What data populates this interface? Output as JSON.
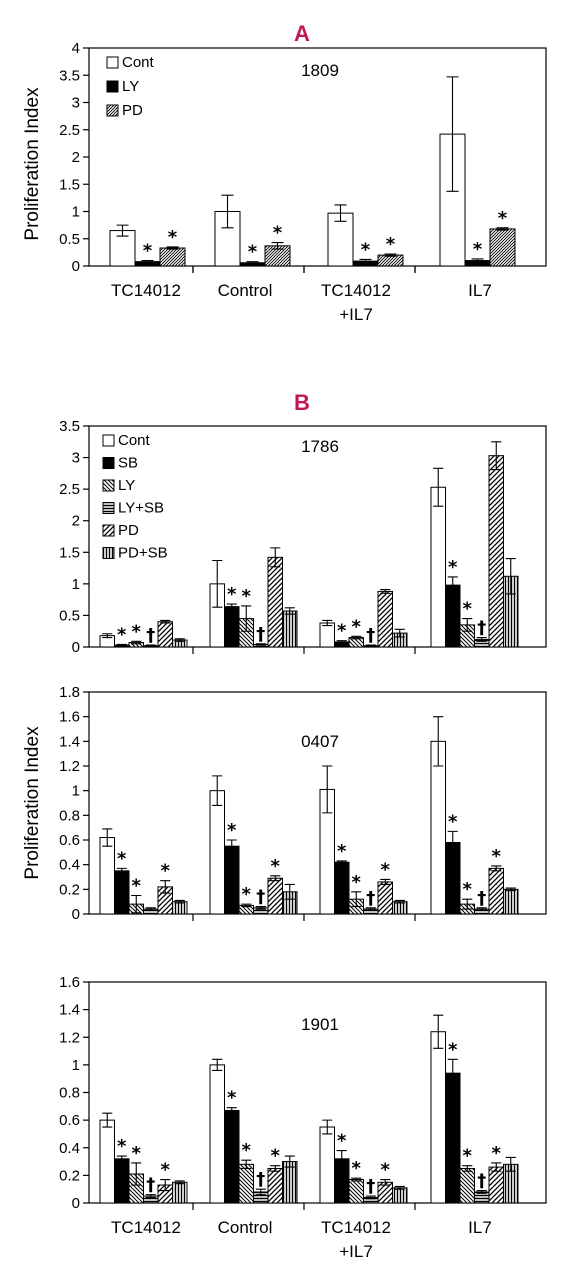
{
  "panels": [
    {
      "letter": "A"
    },
    {
      "letter": "B"
    }
  ],
  "shared_ylabel": "Proliferation Index",
  "category_labels": [
    [
      "TC14012"
    ],
    [
      "Control"
    ],
    [
      "TC14012",
      "+IL7"
    ],
    [
      "IL7"
    ]
  ],
  "chart_data": [
    {
      "type": "bar",
      "panel": "A",
      "title": "1809",
      "ylabel": "Proliferation Index",
      "ylim": [
        0,
        4
      ],
      "yticks": [
        "0",
        "0.5",
        "1",
        "1.5",
        "2",
        "2.5",
        "3",
        "3.5",
        "4"
      ],
      "categories": [
        "TC14012",
        "Control",
        "TC14012 +IL7",
        "IL7"
      ],
      "legend_position": "top-left",
      "series": [
        {
          "name": "Cont",
          "pattern": "white",
          "values": [
            0.65,
            1.0,
            0.97,
            2.42
          ],
          "errors": [
            0.1,
            0.3,
            0.15,
            1.05
          ],
          "markers": [
            "",
            "",
            "",
            ""
          ]
        },
        {
          "name": "LY",
          "pattern": "black",
          "values": [
            0.08,
            0.06,
            0.09,
            0.1
          ],
          "errors": [
            0.02,
            0.02,
            0.03,
            0.03
          ],
          "markers": [
            "*",
            "*",
            "*",
            "*"
          ]
        },
        {
          "name": "PD",
          "pattern": "diag-fine",
          "values": [
            0.33,
            0.37,
            0.2,
            0.68
          ],
          "errors": [
            0.02,
            0.06,
            0.02,
            0.02
          ],
          "markers": [
            "*",
            "*",
            "*",
            "*"
          ]
        }
      ]
    },
    {
      "type": "bar",
      "panel": "B",
      "title": "1786",
      "ylabel": "",
      "ylim": [
        0,
        3.5
      ],
      "yticks": [
        "0",
        "0.5",
        "1",
        "1.5",
        "2",
        "2.5",
        "3",
        "3.5"
      ],
      "categories": [
        "TC14012",
        "Control",
        "TC14012 +IL7",
        "IL7"
      ],
      "legend_position": "top-left",
      "series": [
        {
          "name": "Cont",
          "pattern": "white",
          "values": [
            0.18,
            1.0,
            0.38,
            2.53
          ],
          "errors": [
            0.03,
            0.37,
            0.04,
            0.3
          ],
          "markers": [
            "",
            "",
            "",
            ""
          ]
        },
        {
          "name": "SB",
          "pattern": "black",
          "values": [
            0.03,
            0.64,
            0.08,
            0.98
          ],
          "errors": [
            0.01,
            0.04,
            0.02,
            0.13
          ],
          "markers": [
            "*",
            "*",
            "*",
            "*"
          ]
        },
        {
          "name": "LY",
          "pattern": "diag-back",
          "values": [
            0.07,
            0.45,
            0.15,
            0.35
          ],
          "errors": [
            0.02,
            0.2,
            0.02,
            0.1
          ],
          "markers": [
            "*",
            "*",
            "*",
            "*"
          ]
        },
        {
          "name": "LY+SB",
          "pattern": "horiz",
          "values": [
            0.02,
            0.04,
            0.02,
            0.12
          ],
          "errors": [
            0.01,
            0.01,
            0.01,
            0.03
          ],
          "markers": [
            "†",
            "†",
            "†",
            "†"
          ]
        },
        {
          "name": "PD",
          "pattern": "diag-wide",
          "values": [
            0.4,
            1.42,
            0.88,
            3.03
          ],
          "errors": [
            0.02,
            0.15,
            0.03,
            0.22
          ],
          "markers": [
            "",
            "",
            "",
            ""
          ]
        },
        {
          "name": "PD+SB",
          "pattern": "vert",
          "values": [
            0.11,
            0.57,
            0.22,
            1.12
          ],
          "errors": [
            0.02,
            0.05,
            0.06,
            0.28
          ],
          "markers": [
            "",
            "",
            "",
            ""
          ]
        }
      ]
    },
    {
      "type": "bar",
      "panel": "B",
      "title": "0407",
      "ylabel": "Proliferation Index",
      "ylim": [
        0,
        1.8
      ],
      "yticks": [
        "0",
        "0.2",
        "0.4",
        "0.6",
        "0.8",
        "1",
        "1.2",
        "1.4",
        "1.6",
        "1.8"
      ],
      "categories": [
        "TC14012",
        "Control",
        "TC14012 +IL7",
        "IL7"
      ],
      "series": [
        {
          "name": "Cont",
          "pattern": "white",
          "values": [
            0.62,
            1.0,
            1.01,
            1.4
          ],
          "errors": [
            0.07,
            0.12,
            0.19,
            0.2
          ],
          "markers": [
            "",
            "",
            "",
            ""
          ]
        },
        {
          "name": "SB",
          "pattern": "black",
          "values": [
            0.35,
            0.55,
            0.42,
            0.58
          ],
          "errors": [
            0.02,
            0.05,
            0.01,
            0.09
          ],
          "markers": [
            "*",
            "*",
            "*",
            "*"
          ]
        },
        {
          "name": "LY",
          "pattern": "diag-back",
          "values": [
            0.08,
            0.07,
            0.12,
            0.08
          ],
          "errors": [
            0.07,
            0.01,
            0.06,
            0.04
          ],
          "markers": [
            "*",
            "*",
            "*",
            "*"
          ]
        },
        {
          "name": "LY+SB",
          "pattern": "horiz",
          "values": [
            0.04,
            0.05,
            0.04,
            0.04
          ],
          "errors": [
            0.01,
            0.01,
            0.01,
            0.01
          ],
          "markers": [
            "",
            "†",
            "†",
            "†"
          ]
        },
        {
          "name": "PD",
          "pattern": "diag-wide",
          "values": [
            0.22,
            0.29,
            0.26,
            0.37
          ],
          "errors": [
            0.05,
            0.02,
            0.02,
            0.02
          ],
          "markers": [
            "*",
            "*",
            "*",
            "*"
          ]
        },
        {
          "name": "PD+SB",
          "pattern": "vert",
          "values": [
            0.1,
            0.18,
            0.1,
            0.2
          ],
          "errors": [
            0.01,
            0.06,
            0.01,
            0.01
          ],
          "markers": [
            "",
            "",
            "",
            ""
          ]
        }
      ]
    },
    {
      "type": "bar",
      "panel": "B",
      "title": "1901",
      "ylabel": "",
      "ylim": [
        0,
        1.6
      ],
      "yticks": [
        "0",
        "0.2",
        "0.4",
        "0.6",
        "0.8",
        "1",
        "1.2",
        "1.4",
        "1.6"
      ],
      "categories": [
        "TC14012",
        "Control",
        "TC14012 +IL7",
        "IL7"
      ],
      "series": [
        {
          "name": "Cont",
          "pattern": "white",
          "values": [
            0.6,
            1.0,
            0.55,
            1.24
          ],
          "errors": [
            0.05,
            0.04,
            0.05,
            0.12
          ],
          "markers": [
            "",
            "",
            "",
            ""
          ]
        },
        {
          "name": "SB",
          "pattern": "black",
          "values": [
            0.32,
            0.67,
            0.32,
            0.94
          ],
          "errors": [
            0.02,
            0.02,
            0.06,
            0.1
          ],
          "markers": [
            "*",
            "*",
            "*",
            "*"
          ]
        },
        {
          "name": "LY",
          "pattern": "diag-back",
          "values": [
            0.21,
            0.28,
            0.17,
            0.25
          ],
          "errors": [
            0.08,
            0.03,
            0.01,
            0.02
          ],
          "markers": [
            "*",
            "*",
            "*",
            "*"
          ]
        },
        {
          "name": "LY+SB",
          "pattern": "horiz",
          "values": [
            0.05,
            0.08,
            0.04,
            0.08
          ],
          "errors": [
            0.01,
            0.02,
            0.01,
            0.01
          ],
          "markers": [
            "†",
            "†",
            "†",
            "†"
          ]
        },
        {
          "name": "PD",
          "pattern": "diag-wide",
          "values": [
            0.13,
            0.25,
            0.15,
            0.26
          ],
          "errors": [
            0.04,
            0.02,
            0.02,
            0.03
          ],
          "markers": [
            "*",
            "*",
            "*",
            "*"
          ]
        },
        {
          "name": "PD+SB",
          "pattern": "vert",
          "values": [
            0.15,
            0.3,
            0.11,
            0.28
          ],
          "errors": [
            0.01,
            0.04,
            0.01,
            0.05
          ],
          "markers": [
            "",
            "",
            "",
            ""
          ]
        }
      ]
    }
  ]
}
